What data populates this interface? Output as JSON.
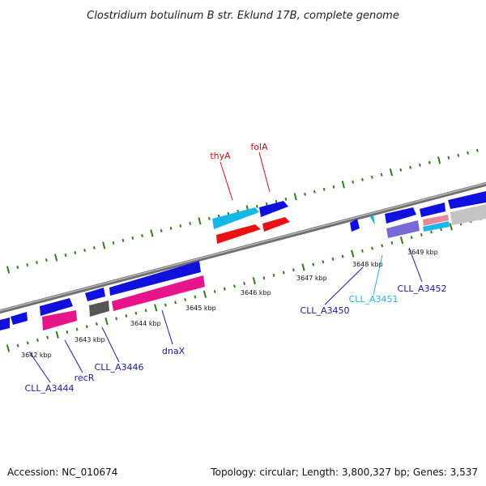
{
  "title": "Clostridium botulinum B str. Eklund 17B, complete genome",
  "footer": {
    "accession": "Accession: NC_010674",
    "topology": "Topology: circular; Length: 3,800,327 bp; Genes: 3,537"
  },
  "colors": {
    "backbone": "#7f7f7f",
    "tick": "#2e7d1a",
    "forward_cds": "#1010dd",
    "reverse_cds": "#e8158a",
    "selected_cds": "#17b8e6",
    "rna": "#e81010",
    "pseudo": "#555555"
  },
  "scale_labels": [
    "3642 kbp",
    "3643 kbp",
    "3644 kbp",
    "3645 kbp",
    "3646 kbp",
    "3647 kbp",
    "3648 kbp",
    "3649 kbp"
  ],
  "gene_labels": [
    {
      "text": "thyA",
      "color": "#cc1111"
    },
    {
      "text": "folA",
      "color": "#cc1111"
    },
    {
      "text": "CLL_A3444",
      "color": "#1a1aa8"
    },
    {
      "text": "recR",
      "color": "#1a1aa8"
    },
    {
      "text": "CLL_A3446",
      "color": "#1a1aa8"
    },
    {
      "text": "dnaX",
      "color": "#1a1aa8"
    },
    {
      "text": "CLL_A3450",
      "color": "#1a1aa8"
    },
    {
      "text": "CLL_A3451",
      "color": "#22b5dd"
    },
    {
      "text": "CLL_A3452",
      "color": "#1a1aa8"
    }
  ]
}
